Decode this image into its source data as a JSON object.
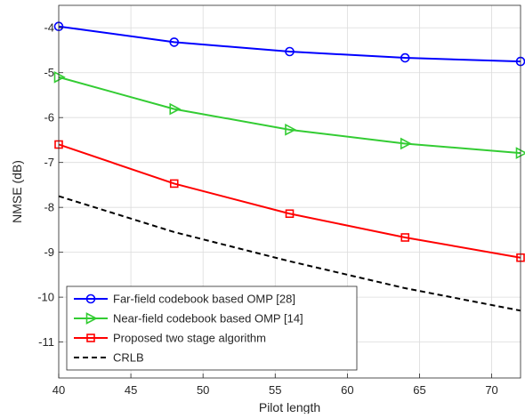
{
  "chart_data": {
    "type": "line",
    "title": "",
    "xlabel": "Pilot length",
    "ylabel": "NMSE (dB)",
    "xlim": [
      40,
      72
    ],
    "ylim": [
      -11.8,
      -3.5
    ],
    "xticks": [
      40,
      45,
      50,
      55,
      60,
      65,
      70
    ],
    "yticks": [
      -4,
      -5,
      -6,
      -7,
      -8,
      -9,
      -10,
      -11
    ],
    "grid": true,
    "legend_position": "bottom-left",
    "x": [
      40,
      48,
      56,
      64,
      72
    ],
    "series": [
      {
        "name": "Far-field codebook based OMP [28]",
        "values": [
          -3.97,
          -4.32,
          -4.53,
          -4.67,
          -4.75
        ],
        "color": "#0000ff",
        "marker": "circle",
        "line": "solid"
      },
      {
        "name": "Near-field codebook based OMP [14]",
        "values": [
          -5.1,
          -5.81,
          -6.27,
          -6.58,
          -6.79
        ],
        "color": "#33cc33",
        "marker": "triangle-right",
        "line": "solid"
      },
      {
        "name": "Proposed two stage algorithm",
        "values": [
          -6.6,
          -7.47,
          -8.14,
          -8.67,
          -9.12
        ],
        "color": "#ff0000",
        "marker": "square",
        "line": "solid"
      },
      {
        "name": "CRLB",
        "values": [
          -7.75,
          -8.55,
          -9.2,
          -9.8,
          -10.3
        ],
        "color": "#000000",
        "marker": "none",
        "line": "dashed"
      }
    ]
  }
}
